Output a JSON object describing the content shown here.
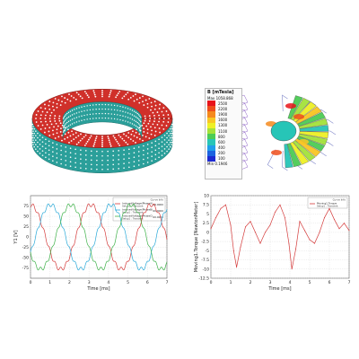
{
  "magnet_ring": {
    "color_top": "#d0302a",
    "color_side": "#2b9f9a",
    "marker_color": "#ffffff"
  },
  "flux_colorbar": {
    "title": "B [mTesla]",
    "max_label": "Max",
    "max_value": "1058.868",
    "min_label": "Min",
    "min_value": "0.1946",
    "levels": [
      "2500",
      "2200",
      "1900",
      "1600",
      "1300",
      "1100",
      "800",
      "600",
      "400",
      "200",
      "100"
    ],
    "colors": [
      "#e8131a",
      "#ef4d1b",
      "#f5891d",
      "#f9c623",
      "#eef025",
      "#a4e23a",
      "#4ccc55",
      "#27c5b7",
      "#1f9eea",
      "#1c63e0",
      "#1d2ad1"
    ]
  },
  "chart_data": [
    {
      "type": "line",
      "xlabel": "Time [ms]",
      "ylabel": "Y1 [V]",
      "xlim": [
        0,
        7
      ],
      "ylim": [
        -100,
        100
      ],
      "xticks": [
        0,
        1,
        2,
        3,
        4,
        5,
        6,
        7
      ],
      "yticks": [
        -75,
        -50,
        -25,
        0,
        25,
        50,
        75
      ],
      "legend_position": "top-right",
      "legend_header": "Curve Info",
      "series": [
        {
          "name": "InducedVoltage(PhaseA)",
          "sub": "Setup1 : Transient",
          "value": "60.0000",
          "color": "#d43b3b",
          "amplitude": 78,
          "phase_deg": 90
        },
        {
          "name": "InducedVoltage(PhaseB)",
          "sub": "Setup1 : Transient",
          "value": "60.0000",
          "color": "#2aa9d8",
          "amplitude": 78,
          "phase_deg": -30
        },
        {
          "name": "InducedVoltage(PhaseC)",
          "sub": "Setup1 : Transient",
          "value": "60.0000",
          "color": "#3fb24a",
          "amplitude": 78,
          "phase_deg": 210
        }
      ],
      "period_ms": 3.1
    },
    {
      "type": "line",
      "xlabel": "Time [ms]",
      "ylabel": "Moving1.Torque [NewtonMeter]",
      "xlim": [
        0,
        7
      ],
      "ylim": [
        -12.5,
        10
      ],
      "xticks": [
        0,
        1,
        2,
        3,
        4,
        5,
        6,
        7
      ],
      "yticks": [
        -12.5,
        -10,
        -7.5,
        -5,
        -2.5,
        0,
        2.5,
        5,
        7.5,
        10
      ],
      "legend_position": "top-right",
      "legend_header": "Curve Info",
      "series": [
        {
          "name": "Moving1.Torque",
          "sub": "Setup1 : Transient",
          "color": "#d43b3b",
          "x": [
            0,
            0.25,
            0.5,
            0.75,
            1,
            1.15,
            1.3,
            1.5,
            1.75,
            2,
            2.25,
            2.5,
            2.75,
            3,
            3.25,
            3.5,
            3.75,
            3.95,
            4.1,
            4.3,
            4.5,
            4.75,
            5,
            5.25,
            5.5,
            5.75,
            6,
            6.25,
            6.5,
            6.75,
            7
          ],
          "y": [
            1,
            4,
            6.5,
            7.5,
            2,
            -5,
            -9.5,
            -4,
            1.5,
            3,
            0,
            -3,
            0,
            2,
            5.5,
            7.5,
            4,
            -3,
            -10,
            -4.5,
            3,
            0.5,
            -2,
            -3,
            0,
            4,
            6.5,
            3.5,
            1,
            2.5,
            0.5
          ]
        }
      ]
    }
  ]
}
